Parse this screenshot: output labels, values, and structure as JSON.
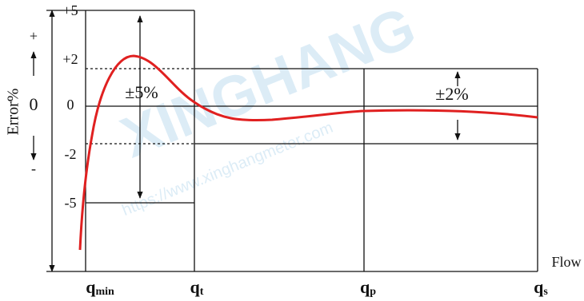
{
  "watermark": [
    "XINGHANG",
    "https://www.xinghangmeter.com"
  ],
  "y_axis": {
    "title": "Error%",
    "direction": [
      "+",
      "0",
      "-"
    ],
    "levels": [
      "+5",
      "+2",
      "0",
      "-2",
      "-5"
    ]
  },
  "bands": {
    "low": "±5%",
    "high": "±2%"
  },
  "x_axis": {
    "title": "Flow",
    "points": [
      {
        "base": "q",
        "sub": "min"
      },
      {
        "base": "q",
        "sub": "t"
      },
      {
        "base": "q",
        "sub": "p"
      },
      {
        "base": "q",
        "sub": "s"
      }
    ]
  }
}
